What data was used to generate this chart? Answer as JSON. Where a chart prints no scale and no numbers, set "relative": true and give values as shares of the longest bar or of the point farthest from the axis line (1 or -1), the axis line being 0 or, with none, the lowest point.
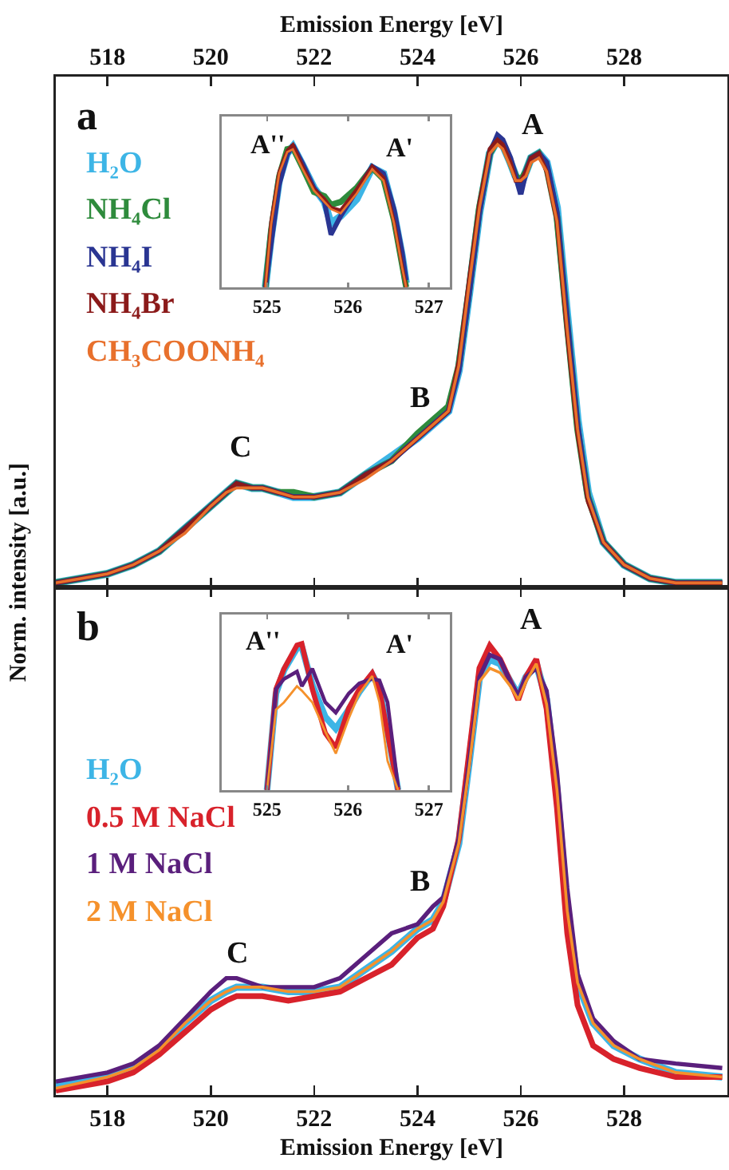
{
  "chart_data": [
    {
      "type": "line",
      "relative": true,
      "xlabel": "Emission Energy [eV]",
      "ylabel": "Norm. intensity [a.u.]",
      "xlim": [
        517,
        530
      ],
      "xticks": [
        518,
        520,
        522,
        524,
        526,
        528
      ],
      "tick_labels": "x",
      "grid": false,
      "x": [
        517,
        517.5,
        518,
        518.5,
        519,
        519.5,
        520,
        520.3,
        520.5,
        520.8,
        521,
        521.3,
        521.6,
        522,
        522.5,
        523,
        523.5,
        524,
        524.3,
        524.6,
        524.8,
        525,
        525.2,
        525.4,
        525.55,
        525.65,
        525.8,
        525.9,
        526,
        526.1,
        526.2,
        526.35,
        526.5,
        526.7,
        526.9,
        527.1,
        527.3,
        527.6,
        528,
        528.5,
        529,
        529.9
      ],
      "series": [
        {
          "name": "H₂O",
          "color": "#3db5e6",
          "values": [
            0.01,
            0.02,
            0.03,
            0.05,
            0.08,
            0.13,
            0.18,
            0.21,
            0.23,
            0.22,
            0.22,
            0.21,
            0.2,
            0.2,
            0.21,
            0.25,
            0.29,
            0.33,
            0.36,
            0.39,
            0.48,
            0.65,
            0.83,
            0.96,
            0.99,
            0.98,
            0.94,
            0.91,
            0.89,
            0.92,
            0.95,
            0.96,
            0.94,
            0.84,
            0.6,
            0.37,
            0.21,
            0.1,
            0.05,
            0.02,
            0.01,
            0.01
          ]
        },
        {
          "name": "NH₄Cl",
          "color": "#2e8b3c",
          "values": [
            0.01,
            0.02,
            0.03,
            0.05,
            0.08,
            0.13,
            0.18,
            0.21,
            0.23,
            0.22,
            0.22,
            0.21,
            0.21,
            0.2,
            0.21,
            0.25,
            0.28,
            0.34,
            0.37,
            0.4,
            0.49,
            0.66,
            0.84,
            0.96,
            0.99,
            0.98,
            0.94,
            0.91,
            0.9,
            0.92,
            0.95,
            0.96,
            0.93,
            0.82,
            0.58,
            0.35,
            0.2,
            0.1,
            0.05,
            0.02,
            0.01,
            0.01
          ]
        },
        {
          "name": "NH₄I",
          "color": "#2a3592",
          "values": [
            0.01,
            0.02,
            0.03,
            0.05,
            0.08,
            0.13,
            0.18,
            0.21,
            0.23,
            0.22,
            0.22,
            0.21,
            0.2,
            0.2,
            0.21,
            0.25,
            0.28,
            0.33,
            0.36,
            0.39,
            0.48,
            0.65,
            0.83,
            0.96,
            1,
            0.99,
            0.95,
            0.91,
            0.87,
            0.92,
            0.95,
            0.96,
            0.94,
            0.83,
            0.59,
            0.36,
            0.2,
            0.1,
            0.05,
            0.02,
            0.01,
            0.01
          ]
        },
        {
          "name": "NH₄Br",
          "color": "#8b1a1a",
          "values": [
            0.01,
            0.02,
            0.03,
            0.05,
            0.08,
            0.13,
            0.18,
            0.21,
            0.23,
            0.22,
            0.22,
            0.21,
            0.2,
            0.2,
            0.21,
            0.25,
            0.28,
            0.33,
            0.36,
            0.39,
            0.5,
            0.68,
            0.85,
            0.97,
            0.99,
            0.98,
            0.94,
            0.9,
            0.9,
            0.92,
            0.95,
            0.96,
            0.92,
            0.81,
            0.56,
            0.34,
            0.19,
            0.1,
            0.05,
            0.02,
            0.01,
            0.01
          ]
        },
        {
          "name": "CH₃COONH₄",
          "color": "#e8702c",
          "values": [
            0.01,
            0.02,
            0.03,
            0.05,
            0.08,
            0.12,
            0.18,
            0.21,
            0.22,
            0.22,
            0.22,
            0.21,
            0.2,
            0.2,
            0.21,
            0.24,
            0.28,
            0.33,
            0.36,
            0.39,
            0.49,
            0.67,
            0.84,
            0.96,
            0.98,
            0.97,
            0.93,
            0.9,
            0.9,
            0.91,
            0.94,
            0.95,
            0.92,
            0.81,
            0.57,
            0.35,
            0.2,
            0.1,
            0.05,
            0.02,
            0.01,
            0.01
          ]
        }
      ],
      "annotations": [
        "a",
        "A",
        "B",
        "C"
      ]
    },
    {
      "type": "line",
      "relative": true,
      "xlabel": "Emission Energy [eV]",
      "xlim": [
        517,
        530
      ],
      "xticks": [
        518,
        520,
        522,
        524,
        526,
        528
      ],
      "tick_labels": "x",
      "grid": false,
      "x": [
        517,
        518,
        518.5,
        519,
        519.5,
        520,
        520.3,
        520.5,
        521,
        521.5,
        522,
        522.5,
        523,
        523.5,
        524,
        524.3,
        524.5,
        524.8,
        525,
        525.2,
        525.4,
        525.6,
        525.8,
        525.95,
        526.1,
        526.3,
        526.5,
        526.7,
        526.9,
        527.1,
        527.4,
        527.8,
        528.3,
        529,
        529.9
      ],
      "series": [
        {
          "name": "H₂O",
          "color": "#3db5e6",
          "values": [
            0.02,
            0.04,
            0.06,
            0.1,
            0.16,
            0.21,
            0.23,
            0.24,
            0.24,
            0.23,
            0.23,
            0.24,
            0.28,
            0.32,
            0.37,
            0.39,
            0.43,
            0.56,
            0.74,
            0.93,
            0.97,
            0.96,
            0.92,
            0.89,
            0.93,
            0.96,
            0.88,
            0.68,
            0.41,
            0.25,
            0.16,
            0.11,
            0.08,
            0.05,
            0.04
          ]
        },
        {
          "name": "0.5 M NaCl",
          "color": "#d8222b",
          "values": [
            0.01,
            0.03,
            0.05,
            0.09,
            0.14,
            0.19,
            0.21,
            0.22,
            0.22,
            0.21,
            0.22,
            0.23,
            0.26,
            0.29,
            0.35,
            0.37,
            0.42,
            0.57,
            0.76,
            0.95,
            1,
            0.97,
            0.92,
            0.88,
            0.93,
            0.97,
            0.86,
            0.64,
            0.36,
            0.2,
            0.11,
            0.08,
            0.06,
            0.04,
            0.04
          ]
        },
        {
          "name": "1 M NaCl",
          "color": "#5a1f7c",
          "values": [
            0.03,
            0.05,
            0.07,
            0.11,
            0.17,
            0.23,
            0.26,
            0.26,
            0.24,
            0.24,
            0.24,
            0.26,
            0.31,
            0.36,
            0.38,
            0.42,
            0.44,
            0.57,
            0.74,
            0.93,
            0.98,
            0.97,
            0.92,
            0.89,
            0.93,
            0.95,
            0.9,
            0.72,
            0.46,
            0.27,
            0.17,
            0.12,
            0.08,
            0.07,
            0.06
          ]
        },
        {
          "name": "2 M NaCl",
          "color": "#f5912b",
          "values": [
            0.015,
            0.04,
            0.06,
            0.1,
            0.16,
            0.21,
            0.23,
            0.24,
            0.24,
            0.23,
            0.23,
            0.24,
            0.28,
            0.32,
            0.37,
            0.39,
            0.43,
            0.56,
            0.73,
            0.92,
            0.95,
            0.94,
            0.91,
            0.88,
            0.92,
            0.96,
            0.87,
            0.68,
            0.41,
            0.25,
            0.16,
            0.11,
            0.08,
            0.05,
            0.04
          ]
        }
      ],
      "annotations": [
        "b",
        "A",
        "B",
        "C"
      ]
    },
    {
      "type": "line",
      "relative": true,
      "xlim": [
        524.44,
        527.26
      ],
      "xticks": [
        525,
        526,
        527
      ],
      "tick_labels": "x",
      "grid": false,
      "x": [
        524.98,
        525.05,
        525.15,
        525.25,
        525.32,
        525.44,
        525.58,
        525.71,
        525.79,
        525.91,
        526.11,
        526.3,
        526.44,
        526.57,
        526.67,
        526.72
      ],
      "series": [
        {
          "color": "#3db5e6",
          "values": [
            0,
            0.35,
            0.75,
            0.94,
            0.99,
            0.86,
            0.7,
            0.6,
            0.45,
            0.5,
            0.62,
            0.84,
            0.8,
            0.52,
            0.22,
            0.03
          ]
        },
        {
          "color": "#2e8b3c",
          "values": [
            0,
            0.4,
            0.78,
            0.97,
            0.98,
            0.84,
            0.67,
            0.64,
            0.58,
            0.6,
            0.7,
            0.84,
            0.76,
            0.47,
            0.16,
            0
          ]
        },
        {
          "color": "#2a3592",
          "values": [
            0,
            0.3,
            0.72,
            0.93,
            1,
            0.87,
            0.7,
            0.6,
            0.37,
            0.5,
            0.68,
            0.85,
            0.8,
            0.55,
            0.25,
            0.05
          ]
        },
        {
          "color": "#8b1a1a",
          "values": [
            0,
            0.46,
            0.81,
            0.96,
            1,
            0.85,
            0.69,
            0.62,
            0.56,
            0.54,
            0.69,
            0.85,
            0.77,
            0.46,
            0.15,
            0
          ]
        },
        {
          "color": "#e8702c",
          "values": [
            0,
            0.44,
            0.8,
            0.95,
            0.97,
            0.83,
            0.68,
            0.6,
            0.55,
            0.52,
            0.66,
            0.83,
            0.75,
            0.45,
            0.14,
            0
          ]
        }
      ],
      "annotations": [
        "A''",
        "A'"
      ]
    },
    {
      "type": "line",
      "relative": true,
      "xlim": [
        524.44,
        527.26
      ],
      "xticks": [
        525,
        526,
        527
      ],
      "tick_labels": "x",
      "grid": false,
      "x": [
        525.0,
        525.11,
        525.21,
        525.37,
        525.43,
        525.56,
        525.72,
        525.85,
        526.01,
        526.14,
        526.3,
        526.39,
        526.49,
        526.62
      ],
      "series": [
        {
          "color": "#3db5e6",
          "values": [
            0,
            0.66,
            0.82,
            0.97,
            0.98,
            0.72,
            0.5,
            0.42,
            0.55,
            0.67,
            0.79,
            0.7,
            0.4,
            0
          ]
        },
        {
          "color": "#d8222b",
          "values": [
            0,
            0.69,
            0.83,
            0.99,
            1,
            0.69,
            0.39,
            0.29,
            0.56,
            0.69,
            0.8,
            0.69,
            0.39,
            0
          ]
        },
        {
          "color": "#5a1f7c",
          "values": [
            0,
            0.69,
            0.76,
            0.81,
            0.71,
            0.83,
            0.6,
            0.53,
            0.66,
            0.73,
            0.76,
            0.75,
            0.6,
            0.02
          ]
        },
        {
          "color": "#f5912b",
          "values": [
            0,
            0.55,
            0.6,
            0.71,
            0.68,
            0.6,
            0.4,
            0.25,
            0.49,
            0.66,
            0.78,
            0.6,
            0.2,
            0
          ]
        }
      ],
      "annotations": [
        "A''",
        "A'"
      ]
    }
  ]
}
